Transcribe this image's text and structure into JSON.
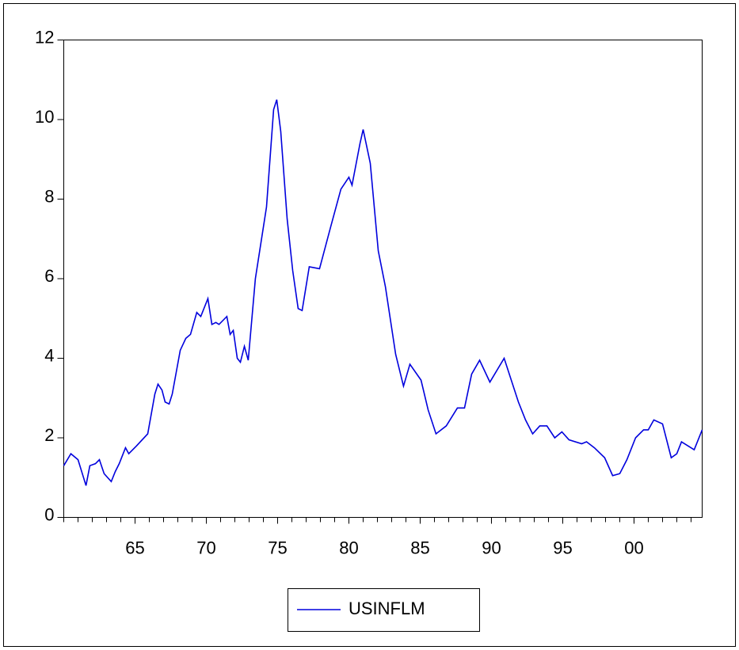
{
  "chart_data": {
    "type": "line",
    "x": [
      1960.0,
      1960.5,
      1961.0,
      1961.56,
      1961.83,
      1962.22,
      1962.5,
      1962.83,
      1963.33,
      1963.61,
      1963.89,
      1964.33,
      1964.56,
      1965.11,
      1965.89,
      1966.39,
      1966.61,
      1966.89,
      1967.11,
      1967.39,
      1967.61,
      1968.17,
      1968.56,
      1968.89,
      1969.33,
      1969.61,
      1970.11,
      1970.39,
      1970.67,
      1970.89,
      1971.44,
      1971.67,
      1971.89,
      1972.17,
      1972.39,
      1972.67,
      1972.94,
      1973.44,
      1974.22,
      1974.72,
      1974.94,
      1975.22,
      1975.67,
      1976.06,
      1976.44,
      1976.72,
      1977.22,
      1977.94,
      1978.72,
      1979.44,
      1980.0,
      1980.22,
      1980.78,
      1981.0,
      1981.5,
      1982.06,
      1982.56,
      1983.28,
      1983.83,
      1984.28,
      1985.06,
      1985.56,
      1986.11,
      1986.83,
      1987.61,
      1988.11,
      1988.61,
      1989.17,
      1989.89,
      1990.89,
      1991.39,
      1991.89,
      1992.39,
      1992.89,
      1993.39,
      1993.89,
      1994.44,
      1994.94,
      1995.44,
      1996.33,
      1996.67,
      1997.22,
      1997.94,
      1998.5,
      1999.0,
      1999.5,
      2000.11,
      2000.67,
      2001.0,
      2001.39,
      2002.0,
      2002.61,
      2003.0,
      2003.33,
      2004.22,
      2004.78
    ],
    "series": [
      {
        "name": "USINFLM",
        "color": "#0000dd",
        "values": [
          1.3,
          1.6,
          1.45,
          0.8,
          1.3,
          1.35,
          1.45,
          1.1,
          0.9,
          1.15,
          1.35,
          1.75,
          1.6,
          1.8,
          2.1,
          3.1,
          3.35,
          3.2,
          2.9,
          2.85,
          3.1,
          4.2,
          4.5,
          4.6,
          5.15,
          5.05,
          5.5,
          4.85,
          4.9,
          4.85,
          5.05,
          4.6,
          4.7,
          4.0,
          3.9,
          4.3,
          3.95,
          6.0,
          7.8,
          10.25,
          10.5,
          9.7,
          7.5,
          6.2,
          5.25,
          5.2,
          6.3,
          6.25,
          7.3,
          8.25,
          8.55,
          8.35,
          9.4,
          9.75,
          8.9,
          6.7,
          5.8,
          4.1,
          3.3,
          3.85,
          3.45,
          2.7,
          2.1,
          2.3,
          2.75,
          2.75,
          3.6,
          3.95,
          3.4,
          4.0,
          3.45,
          2.9,
          2.45,
          2.1,
          2.3,
          2.3,
          2.0,
          2.15,
          1.95,
          1.85,
          1.9,
          1.75,
          1.5,
          1.05,
          1.1,
          1.45,
          2.0,
          2.2,
          2.2,
          2.45,
          2.35,
          1.5,
          1.6,
          1.9,
          1.7,
          2.2
        ]
      }
    ],
    "xlim": [
      1960,
      2004.78
    ],
    "xticks": [
      {
        "value": 1965,
        "label": "65"
      },
      {
        "value": 1970,
        "label": "70"
      },
      {
        "value": 1975,
        "label": "75"
      },
      {
        "value": 1980,
        "label": "80"
      },
      {
        "value": 1985,
        "label": "85"
      },
      {
        "value": 1990,
        "label": "90"
      },
      {
        "value": 1995,
        "label": "95"
      },
      {
        "value": 2000,
        "label": "00"
      }
    ],
    "ylim": [
      0,
      12
    ],
    "yticks": [
      0,
      2,
      4,
      6,
      8,
      10,
      12
    ],
    "grid": false,
    "legend": "bottom"
  }
}
